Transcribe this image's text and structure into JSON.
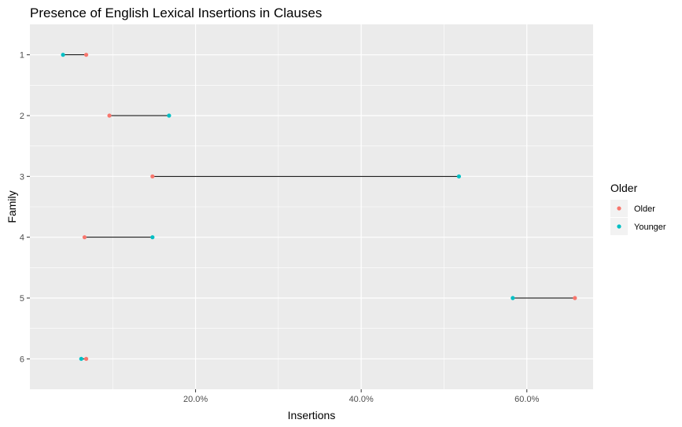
{
  "chart_data": {
    "type": "dumbbell",
    "title": "Presence of English Lexical Insertions in Clauses",
    "xlabel": "Insertions",
    "ylabel": "Family",
    "categories": [
      "1",
      "2",
      "3",
      "4",
      "5",
      "6"
    ],
    "x_ticks": [
      0.2,
      0.4,
      0.6
    ],
    "x_tick_labels": [
      "20.0%",
      "40.0%",
      "60.0%"
    ],
    "xlim": [
      0.0,
      0.68
    ],
    "legend": {
      "title": "Older",
      "position": "right",
      "entries": [
        {
          "name": "Older",
          "color": "#F8766D"
        },
        {
          "name": "Younger",
          "color": "#00BFC4"
        }
      ]
    },
    "series": [
      {
        "name": "Older",
        "color": "#F8766D",
        "values": [
          0.068,
          0.096,
          0.148,
          0.066,
          0.658,
          0.068
        ]
      },
      {
        "name": "Younger",
        "color": "#00BFC4",
        "values": [
          0.04,
          0.168,
          0.518,
          0.148,
          0.583,
          0.062
        ]
      }
    ],
    "grid": true,
    "panel_background": "#EBEBEB",
    "grid_color": "#FFFFFF",
    "segment_color": "#000000"
  }
}
